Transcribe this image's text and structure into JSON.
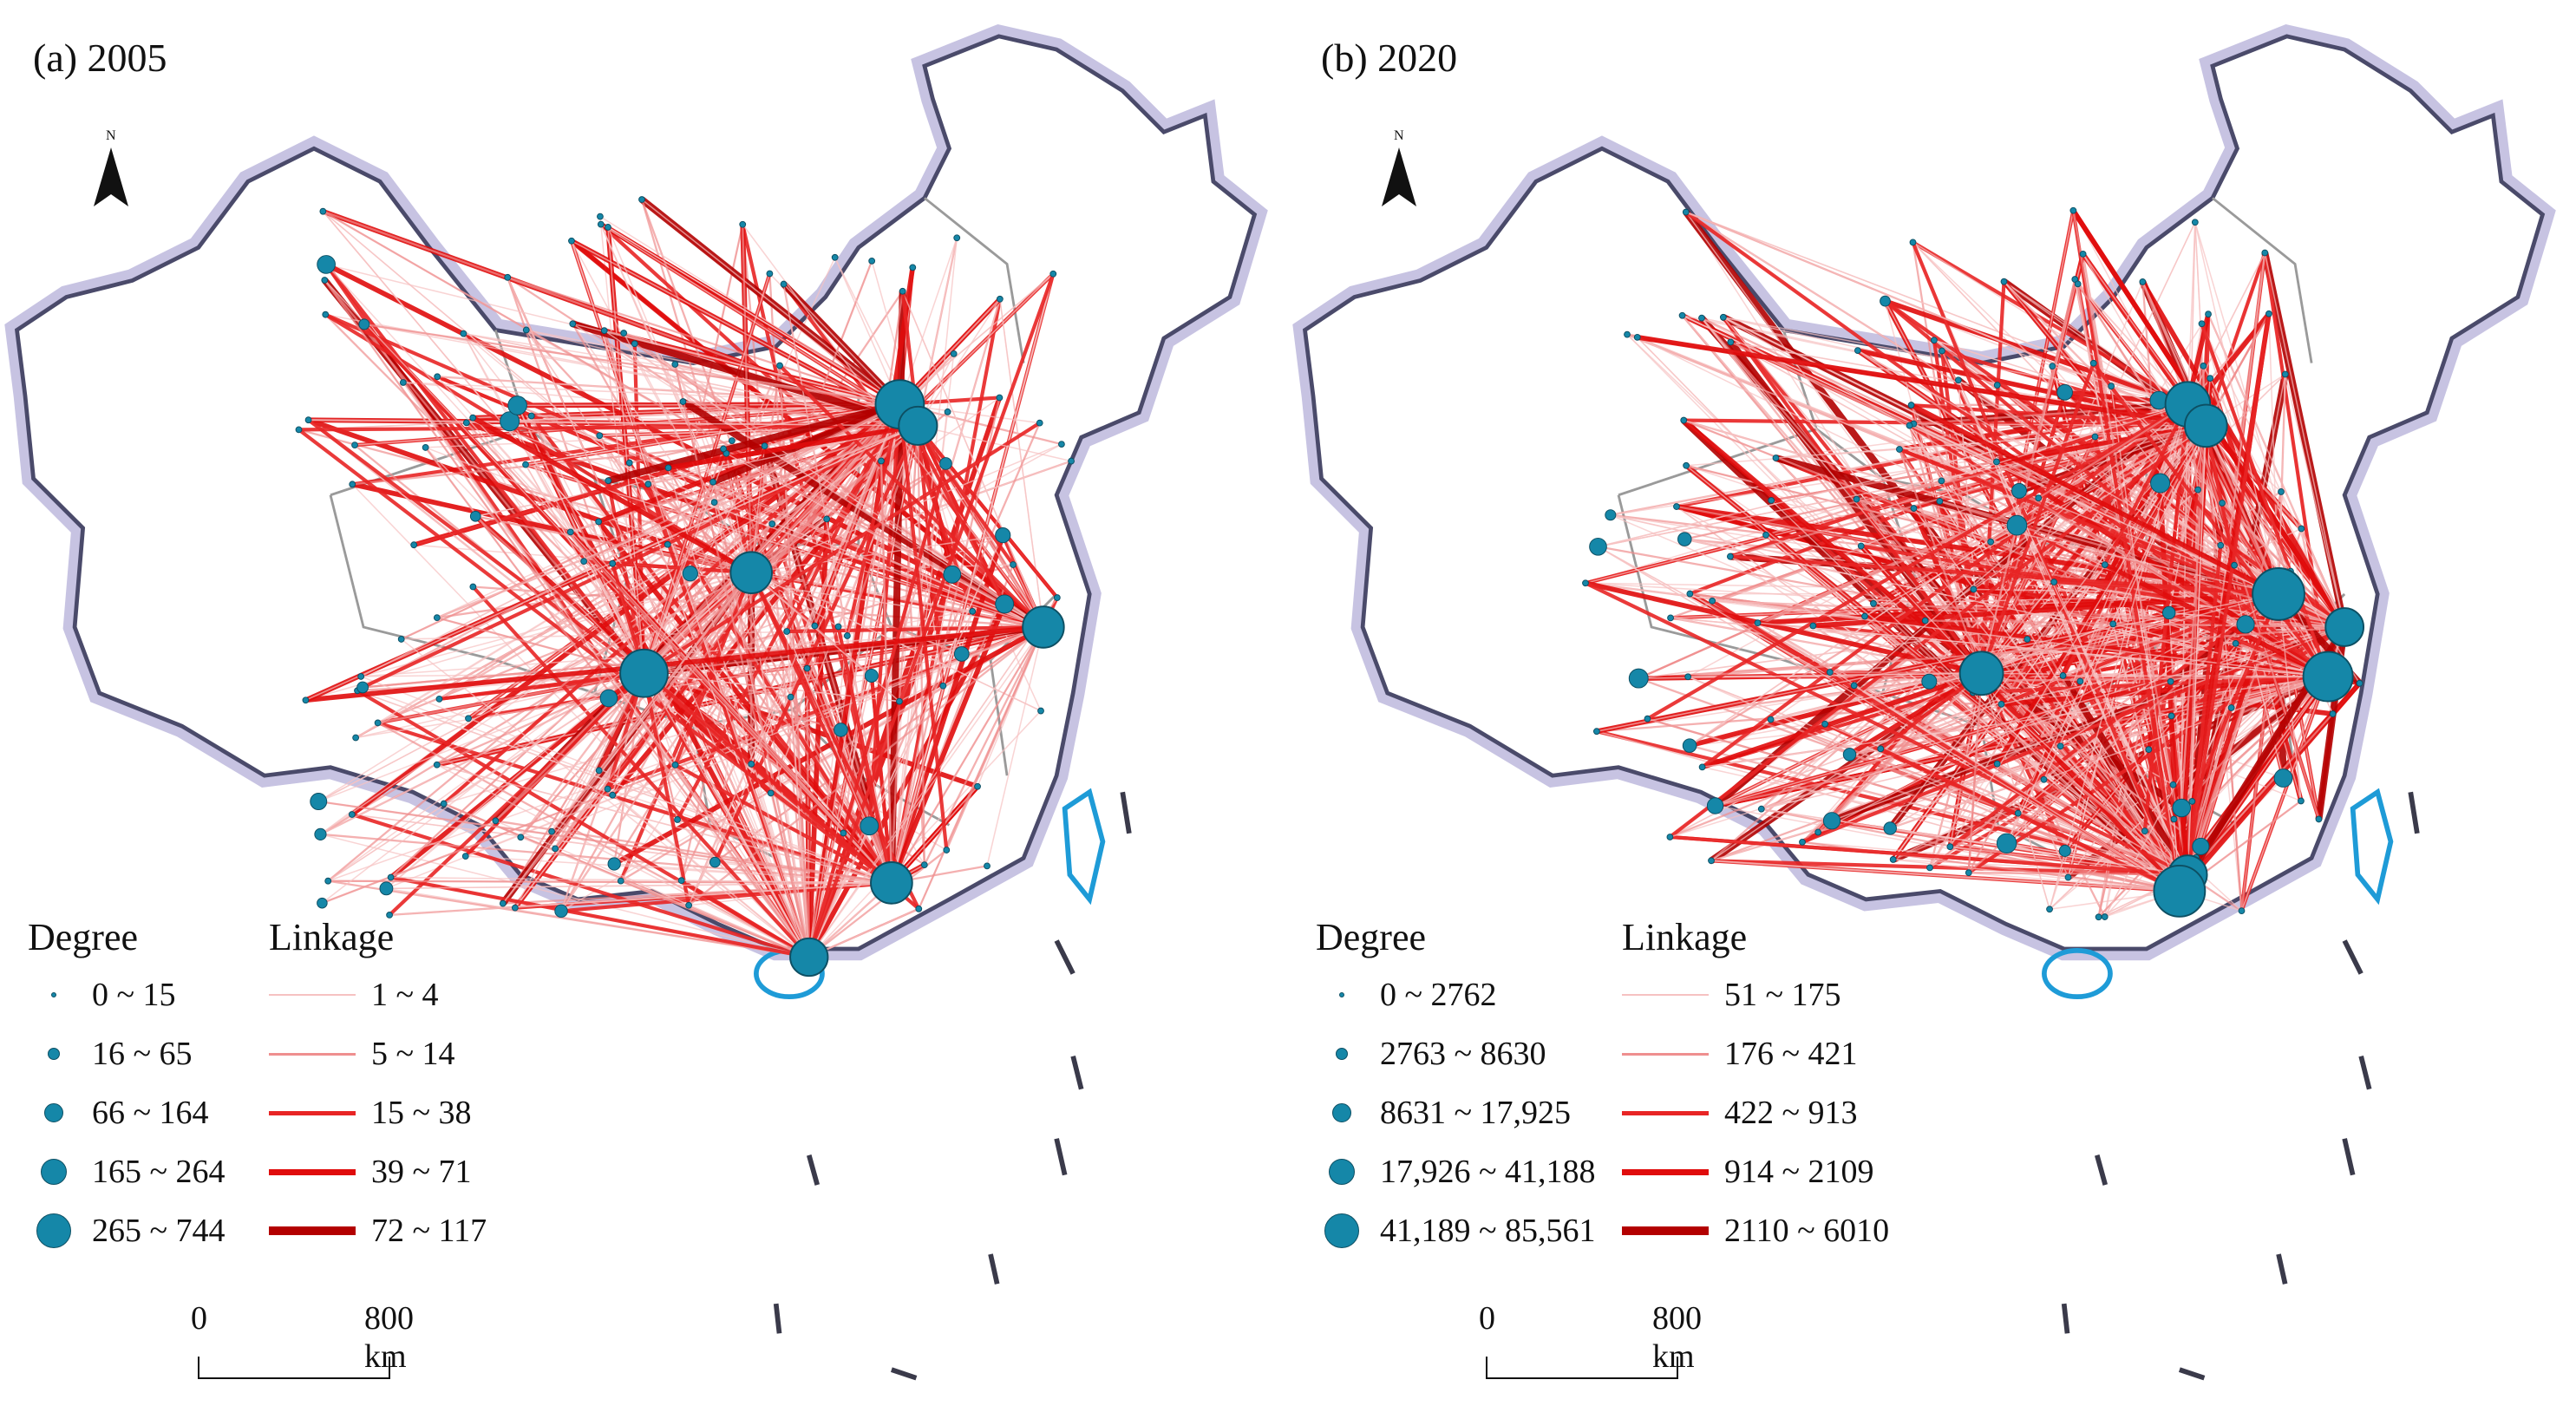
{
  "panels": [
    {
      "title": "(a) 2005",
      "north_label": "N",
      "degree_legend": {
        "title": "Degree",
        "classes": [
          "0 ~ 15",
          "16 ~ 65",
          "66 ~ 164",
          "165 ~ 264",
          "265 ~ 744"
        ]
      },
      "linkage_legend": {
        "title": "Linkage",
        "classes": [
          "1 ~ 4",
          "5 ~ 14",
          "15 ~ 38",
          "39 ~ 71",
          "72 ~ 117"
        ]
      },
      "scale": {
        "start": "0",
        "end": "800 km"
      }
    },
    {
      "title": "(b) 2020",
      "north_label": "N",
      "degree_legend": {
        "title": "Degree",
        "classes": [
          "0 ~ 2762",
          "2763 ~ 8630",
          "8631 ~ 17,925",
          "17,926 ~ 41,188",
          "41,189 ~ 85,561"
        ]
      },
      "linkage_legend": {
        "title": "Linkage",
        "classes": [
          "51 ~ 175",
          "176 ~ 421",
          "422 ~ 913",
          "914 ~ 2109",
          "2110 ~ 6010"
        ]
      },
      "scale": {
        "start": "0",
        "end": "800 km"
      }
    }
  ],
  "colors": {
    "node_fill": "#1587a8",
    "node_stroke": "#0d4f63",
    "link_classes": [
      "#f6c2c2",
      "#ef8f8f",
      "#e82525",
      "#e00c0c",
      "#b30000"
    ],
    "border_halo": "#b8b4d8",
    "coast_blue": "#1e9bd7",
    "island_pink": "#d6379b"
  }
}
